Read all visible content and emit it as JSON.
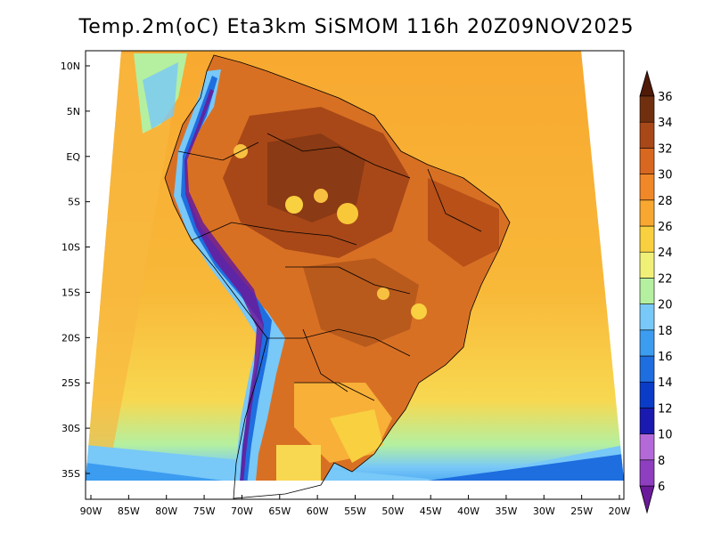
{
  "title": "Temp.2m(oC) Eta3km SiSMOM 116h 20Z09NOV2025",
  "map": {
    "lon_labels": [
      "90W",
      "85W",
      "80W",
      "75W",
      "70W",
      "65W",
      "60W",
      "55W",
      "50W",
      "45W",
      "40W",
      "35W",
      "30W",
      "25W",
      "20W"
    ],
    "lat_labels": [
      "10N",
      "5N",
      "EQ",
      "5S",
      "10S",
      "15S",
      "20S",
      "25S",
      "30S",
      "35S"
    ]
  },
  "colorbar": {
    "levels": [
      "6",
      "8",
      "10",
      "12",
      "14",
      "16",
      "18",
      "20",
      "22",
      "24",
      "26",
      "28",
      "30",
      "32",
      "34",
      "36"
    ],
    "colors": [
      "#6a1a9a",
      "#8e3fc0",
      "#b36ad8",
      "#1a1ab0",
      "#0a3cc8",
      "#1e6ee0",
      "#3c9cf0",
      "#78c8f8",
      "#b4f0a0",
      "#f0f078",
      "#f8d040",
      "#f8a830",
      "#f08828",
      "#d86820",
      "#a84818",
      "#703010",
      "#501a08"
    ]
  }
}
